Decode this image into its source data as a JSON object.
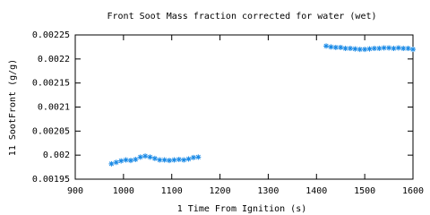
{
  "chart_data": {
    "type": "scatter",
    "title": "Front Soot Mass fraction corrected for water (wet)",
    "xlabel": "1 Time From Ignition (s)",
    "ylabel": "11 SootFront (g/g)",
    "xlim": [
      900,
      1600
    ],
    "xticks": [
      900,
      1000,
      1100,
      1200,
      1300,
      1400,
      1500,
      1600
    ],
    "ylim": [
      0.00195,
      0.00225
    ],
    "yticks": [
      0.00195,
      0.002,
      0.00205,
      0.0021,
      0.00215,
      0.0022,
      0.00225
    ],
    "series": [
      {
        "color": "#1a8ae6",
        "x": [
          975,
          985,
          995,
          1005,
          1015,
          1025,
          1035,
          1045,
          1055,
          1065,
          1075,
          1085,
          1095,
          1105,
          1115,
          1125,
          1135,
          1145,
          1155,
          1420,
          1430,
          1440,
          1450,
          1460,
          1470,
          1480,
          1490,
          1500,
          1510,
          1520,
          1530,
          1540,
          1550,
          1560,
          1570,
          1580,
          1590,
          1600
        ],
        "values": [
          0.001982,
          0.001985,
          0.001988,
          0.00199,
          0.001989,
          0.001991,
          0.001996,
          0.001998,
          0.001996,
          0.001993,
          0.00199,
          0.00199,
          0.001989,
          0.00199,
          0.001991,
          0.00199,
          0.001992,
          0.001995,
          0.001996,
          0.002227,
          0.002225,
          0.002224,
          0.002224,
          0.002222,
          0.002222,
          0.002221,
          0.00222,
          0.00222,
          0.002221,
          0.002222,
          0.002222,
          0.002223,
          0.002223,
          0.002222,
          0.002223,
          0.002222,
          0.002222,
          0.00222
        ]
      }
    ]
  }
}
